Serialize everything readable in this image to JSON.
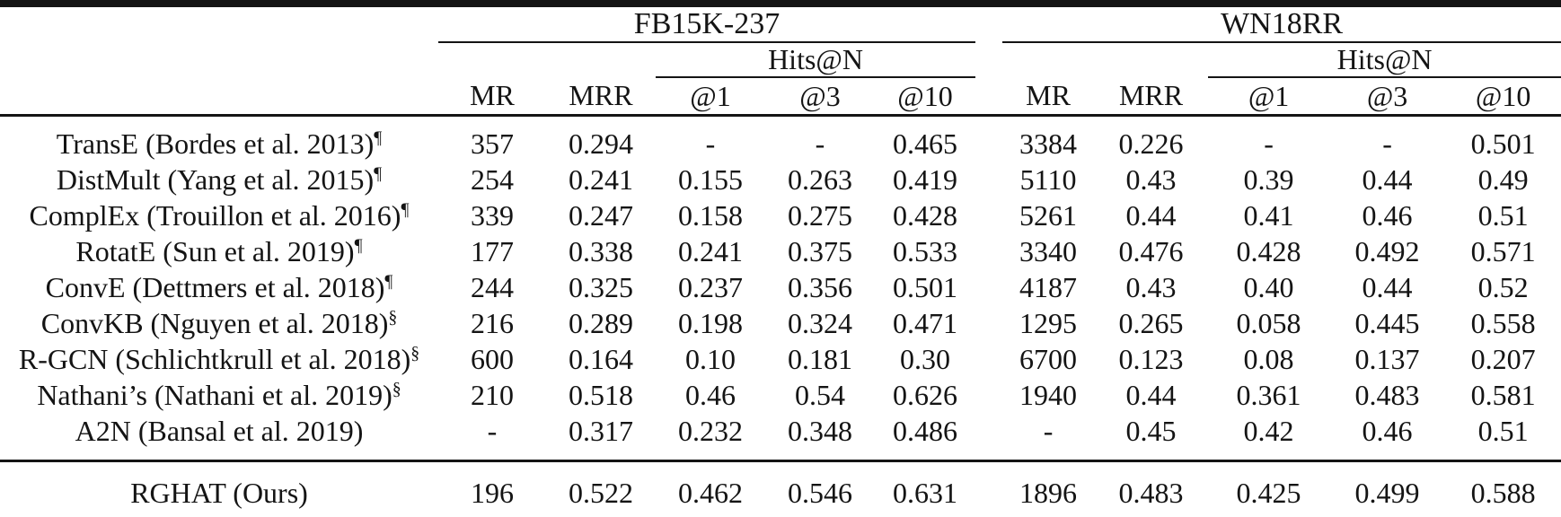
{
  "table": {
    "groups": [
      {
        "label": "FB15K-237"
      },
      {
        "label": "WN18RR"
      }
    ],
    "hits_label": "Hits@N",
    "metric_headers": [
      "MR",
      "MRR",
      "@1",
      "@3",
      "@10"
    ],
    "rows": [
      {
        "method": "TransE (Bordes et al. 2013)",
        "sup": "¶",
        "cells": [
          "357",
          "0.294",
          "-",
          "-",
          "0.465",
          "3384",
          "0.226",
          "-",
          "-",
          "0.501"
        ],
        "bold": [
          false,
          false,
          false,
          false,
          false,
          false,
          false,
          false,
          false,
          false
        ]
      },
      {
        "method": "DistMult (Yang et al. 2015)",
        "sup": "¶",
        "cells": [
          "254",
          "0.241",
          "0.155",
          "0.263",
          "0.419",
          "5110",
          "0.43",
          "0.39",
          "0.44",
          "0.49"
        ],
        "bold": [
          false,
          false,
          false,
          false,
          false,
          false,
          false,
          false,
          false,
          false
        ]
      },
      {
        "method": "ComplEx (Trouillon et al. 2016)",
        "sup": "¶",
        "cells": [
          "339",
          "0.247",
          "0.158",
          "0.275",
          "0.428",
          "5261",
          "0.44",
          "0.41",
          "0.46",
          "0.51"
        ],
        "bold": [
          false,
          false,
          false,
          false,
          false,
          false,
          false,
          false,
          false,
          false
        ]
      },
      {
        "method": "RotatE (Sun et al. 2019)",
        "sup": "¶",
        "cells": [
          "177",
          "0.338",
          "0.241",
          "0.375",
          "0.533",
          "3340",
          "0.476",
          "0.428",
          "0.492",
          "0.571"
        ],
        "bold": [
          true,
          false,
          false,
          false,
          false,
          false,
          false,
          true,
          false,
          false
        ]
      },
      {
        "method": "ConvE (Dettmers et al. 2018)",
        "sup": "¶",
        "cells": [
          "244",
          "0.325",
          "0.237",
          "0.356",
          "0.501",
          "4187",
          "0.43",
          "0.40",
          "0.44",
          "0.52"
        ],
        "bold": [
          false,
          false,
          false,
          false,
          false,
          false,
          false,
          false,
          false,
          false
        ]
      },
      {
        "method": "ConvKB (Nguyen et al. 2018)",
        "sup": "§",
        "cells": [
          "216",
          "0.289",
          "0.198",
          "0.324",
          "0.471",
          "1295",
          "0.265",
          "0.058",
          "0.445",
          "0.558"
        ],
        "bold": [
          false,
          false,
          false,
          false,
          false,
          true,
          false,
          false,
          false,
          false
        ]
      },
      {
        "method": "R-GCN (Schlichtkrull et al. 2018)",
        "sup": "§",
        "cells": [
          "600",
          "0.164",
          "0.10",
          "0.181",
          "0.30",
          "6700",
          "0.123",
          "0.08",
          "0.137",
          "0.207"
        ],
        "bold": [
          false,
          false,
          false,
          false,
          false,
          false,
          false,
          false,
          false,
          false
        ]
      },
      {
        "method": "Nathani’s (Nathani et al. 2019)",
        "sup": "§",
        "cells": [
          "210",
          "0.518",
          "0.46",
          "0.54",
          "0.626",
          "1940",
          "0.44",
          "0.361",
          "0.483",
          "0.581"
        ],
        "bold": [
          false,
          false,
          false,
          false,
          false,
          false,
          false,
          false,
          false,
          false
        ]
      },
      {
        "method": "A2N (Bansal et al. 2019)",
        "sup": "",
        "cells": [
          "-",
          "0.317",
          "0.232",
          "0.348",
          "0.486",
          "-",
          "0.45",
          "0.42",
          "0.46",
          "0.51"
        ],
        "bold": [
          false,
          false,
          false,
          false,
          false,
          false,
          false,
          false,
          false,
          false
        ]
      },
      {
        "method": "RGHAT (Ours)",
        "sup": "",
        "cells": [
          "196",
          "0.522",
          "0.462",
          "0.546",
          "0.631",
          "1896",
          "0.483",
          "0.425",
          "0.499",
          "0.588"
        ],
        "bold": [
          false,
          true,
          true,
          true,
          true,
          false,
          true,
          false,
          true,
          true
        ]
      }
    ]
  }
}
